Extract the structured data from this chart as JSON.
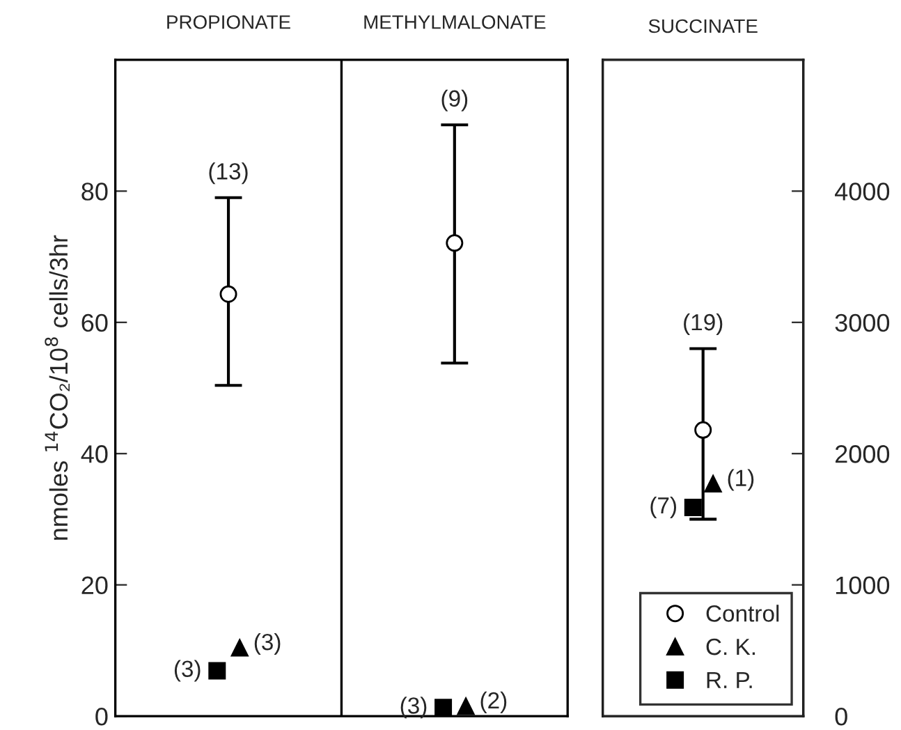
{
  "chart_data": [
    {
      "type": "scatter",
      "ylabel": "nmoles $^{14}$CO₂/10$^{8}$ cells/3hr",
      "categories": [
        "PROPIONATE",
        "METHYLMALONATE"
      ],
      "ylim": [
        0,
        100
      ],
      "yticks": [
        0,
        20,
        40,
        60,
        80
      ],
      "grid": false,
      "legend": false,
      "series": [
        {
          "color": "#000000",
          "marker": "circle",
          "values": [
            64.3,
            72.1
          ],
          "errors": [
            [
              50.4,
              79.0
            ],
            [
              53.8,
              90.1
            ]
          ]
        },
        {
          "color": "#000000",
          "marker": "triangle",
          "values": [
            10.4,
            1.5
          ]
        },
        {
          "color": "#000000",
          "marker": "square",
          "values": [
            6.9,
            1.3
          ]
        }
      ],
      "annotations": [
        "(13)",
        "(3)",
        "(3)",
        "(9)",
        "(2)",
        "(3)"
      ]
    },
    {
      "type": "scatter",
      "title": "SUCCINATE",
      "categories": [
        null
      ],
      "y2lim": [
        0,
        5000
      ],
      "y2ticks": [
        0,
        1000,
        2000,
        3000,
        4000
      ],
      "grid": false,
      "legend": "bottom right",
      "series": [
        {
          "name": "Control",
          "axis": "y2",
          "color": "#000000",
          "marker": "circle",
          "values": [
            2180
          ],
          "errors": [
            [
              1500,
              2800
            ]
          ]
        },
        {
          "name": "C. K.",
          "axis": "y2",
          "color": "#000000",
          "marker": "triangle",
          "values": [
            1770
          ]
        },
        {
          "name": "R. P.",
          "axis": "y2",
          "color": "#000000",
          "marker": "square",
          "values": [
            1590
          ]
        }
      ],
      "annotations": [
        "(19)",
        "(1)",
        "(7)"
      ]
    }
  ]
}
